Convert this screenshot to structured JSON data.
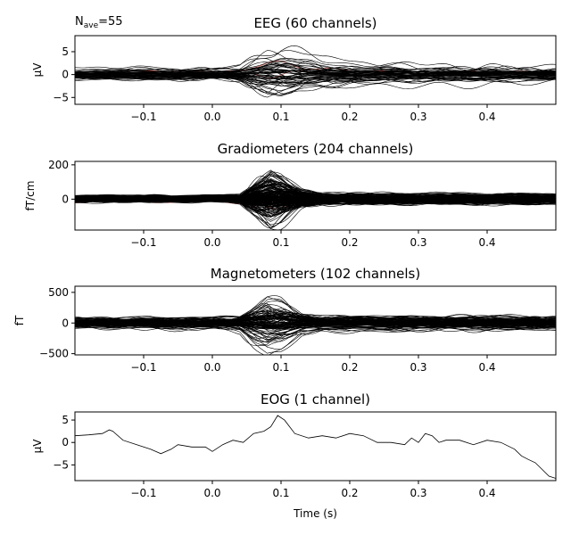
{
  "annotation": {
    "n_ave_prefix": "N",
    "n_ave_sub": "ave",
    "n_ave_value": "=55"
  },
  "chart_data": [
    {
      "type": "line",
      "title": "EEG (60 channels)",
      "ylabel": "µV",
      "xlabel": "",
      "xlim": [
        -0.2,
        0.5
      ],
      "ylim": [
        -6.5,
        8.5
      ],
      "xticks": [
        -0.1,
        0.0,
        0.1,
        0.2,
        0.3,
        0.4
      ],
      "xtick_labels": [
        "−0.1",
        "0.0",
        "0.1",
        "0.2",
        "0.3",
        "0.4"
      ],
      "yticks": [
        -5,
        0,
        5
      ],
      "ytick_labels": [
        "−5",
        "0",
        "5"
      ],
      "traces": 60,
      "highlight_traces": 2,
      "highlight_color": "#c0392b",
      "trace_color": "#000000",
      "envelope": {
        "t": [
          -0.2,
          -0.1,
          0.0,
          0.04,
          0.06,
          0.08,
          0.1,
          0.13,
          0.16,
          0.2,
          0.3,
          0.4,
          0.5
        ],
        "amp": [
          1.5,
          1.8,
          1.5,
          2.0,
          4.0,
          6.0,
          6.5,
          5.0,
          3.5,
          3.0,
          2.5,
          2.5,
          2.0
        ]
      }
    },
    {
      "type": "line",
      "title": "Gradiometers (204 channels)",
      "ylabel": "fT/cm",
      "xlabel": "",
      "xlim": [
        -0.2,
        0.5
      ],
      "ylim": [
        -180,
        220
      ],
      "xticks": [
        -0.1,
        0.0,
        0.1,
        0.2,
        0.3,
        0.4
      ],
      "xtick_labels": [
        "−0.1",
        "0.0",
        "0.1",
        "0.2",
        "0.3",
        "0.4"
      ],
      "yticks": [
        0,
        200
      ],
      "ytick_labels": [
        "0",
        "200"
      ],
      "traces": 204,
      "highlight_traces": 2,
      "highlight_color": "#c0392b",
      "trace_color": "#000000",
      "envelope": {
        "t": [
          -0.2,
          -0.1,
          0.0,
          0.04,
          0.06,
          0.085,
          0.1,
          0.13,
          0.16,
          0.2,
          0.3,
          0.4,
          0.5
        ],
        "amp": [
          25,
          25,
          25,
          35,
          110,
          190,
          160,
          70,
          40,
          40,
          35,
          35,
          35
        ]
      }
    },
    {
      "type": "line",
      "title": "Magnetometers (102 channels)",
      "ylabel": "fT",
      "xlabel": "",
      "xlim": [
        -0.2,
        0.5
      ],
      "ylim": [
        -520,
        600
      ],
      "xticks": [
        -0.1,
        0.0,
        0.1,
        0.2,
        0.3,
        0.4
      ],
      "xtick_labels": [
        "−0.1",
        "0.0",
        "0.1",
        "0.2",
        "0.3",
        "0.4"
      ],
      "yticks": [
        -500,
        0,
        500
      ],
      "ytick_labels": [
        "−500",
        "0",
        "500"
      ],
      "traces": 102,
      "highlight_traces": 0,
      "highlight_color": "#c0392b",
      "trace_color": "#000000",
      "envelope": {
        "t": [
          -0.2,
          -0.1,
          0.0,
          0.04,
          0.06,
          0.08,
          0.1,
          0.13,
          0.16,
          0.2,
          0.3,
          0.4,
          0.5
        ],
        "amp": [
          100,
          110,
          110,
          150,
          350,
          520,
          450,
          200,
          140,
          150,
          140,
          140,
          130
        ]
      }
    },
    {
      "type": "line",
      "title": "EOG (1 channel)",
      "ylabel": "µV",
      "xlabel": "Time (s)",
      "xlim": [
        -0.2,
        0.5
      ],
      "ylim": [
        -8.5,
        6.8
      ],
      "xticks": [
        -0.1,
        0.0,
        0.1,
        0.2,
        0.3,
        0.4
      ],
      "xtick_labels": [
        "−0.1",
        "0.0",
        "0.1",
        "0.2",
        "0.3",
        "0.4"
      ],
      "yticks": [
        -5,
        0,
        5
      ],
      "ytick_labels": [
        "−5",
        "0",
        "5"
      ],
      "traces": 1,
      "trace_color": "#000000",
      "series": [
        {
          "x": [
            -0.2,
            -0.18,
            -0.16,
            -0.15,
            -0.145,
            -0.13,
            -0.11,
            -0.1,
            -0.09,
            -0.075,
            -0.06,
            -0.05,
            -0.03,
            -0.01,
            0.0,
            0.015,
            0.03,
            0.045,
            0.06,
            0.075,
            0.085,
            0.095,
            0.105,
            0.12,
            0.14,
            0.16,
            0.18,
            0.2,
            0.22,
            0.24,
            0.26,
            0.28,
            0.29,
            0.3,
            0.31,
            0.32,
            0.33,
            0.34,
            0.36,
            0.38,
            0.4,
            0.42,
            0.44,
            0.45,
            0.46,
            0.47,
            0.48,
            0.49,
            0.5
          ],
          "y": [
            1.5,
            1.7,
            2.0,
            2.8,
            2.5,
            0.5,
            -0.5,
            -1.0,
            -1.5,
            -2.5,
            -1.5,
            -0.5,
            -1.0,
            -1.0,
            -2.0,
            -0.5,
            0.5,
            0.0,
            2.0,
            2.5,
            3.5,
            6.0,
            5.0,
            2.0,
            1.0,
            1.5,
            1.0,
            2.0,
            1.5,
            0.0,
            0.0,
            -0.5,
            1.0,
            0.0,
            2.0,
            1.5,
            0.0,
            0.5,
            0.5,
            -0.5,
            0.5,
            0.0,
            -1.5,
            -3.0,
            -3.8,
            -4.5,
            -6.0,
            -7.5,
            -8.0
          ]
        }
      ]
    }
  ]
}
